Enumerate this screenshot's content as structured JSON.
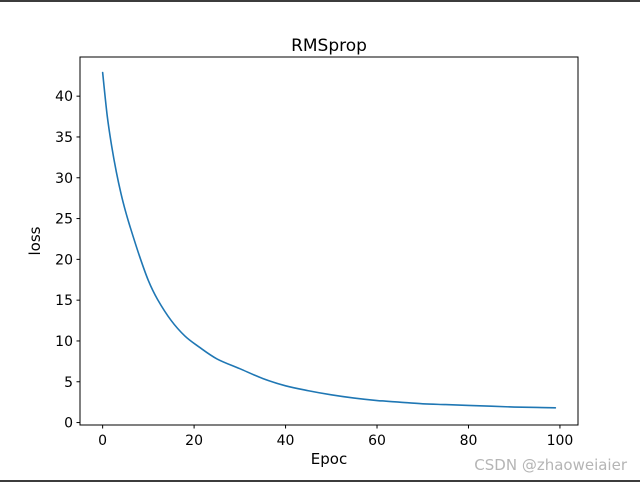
{
  "page": {
    "background": "#ffffff",
    "border_color": "#3c3c3c"
  },
  "watermark": {
    "text": "CSDN @zhaoweiaier",
    "color": "#b5b5b5"
  },
  "chart_data": {
    "type": "line",
    "title": "RMSprop",
    "xlabel": "Epoc",
    "ylabel": "loss",
    "grid": false,
    "legend": null,
    "xlim": [
      -4.95,
      103.95
    ],
    "ylim": [
      -0.3,
      44.8
    ],
    "xticks": [
      0,
      20,
      40,
      60,
      80,
      100
    ],
    "yticks": [
      0,
      5,
      10,
      15,
      20,
      25,
      30,
      35,
      40
    ],
    "series": [
      {
        "name": "loss",
        "color": "#1f77b4",
        "line_width": 1.6,
        "x": [
          0,
          1,
          2,
          3,
          4,
          5,
          6,
          8,
          10,
          12,
          15,
          18,
          21,
          25,
          30,
          35,
          40,
          45,
          50,
          55,
          60,
          65,
          70,
          75,
          80,
          85,
          90,
          95,
          99
        ],
        "y": [
          42.9,
          37.6,
          33.8,
          30.7,
          28.1,
          25.9,
          24.0,
          20.5,
          17.4,
          15.1,
          12.5,
          10.6,
          9.3,
          7.8,
          6.6,
          5.4,
          4.5,
          3.9,
          3.4,
          3.0,
          2.7,
          2.5,
          2.3,
          2.2,
          2.1,
          2.0,
          1.9,
          1.85,
          1.8
        ]
      }
    ]
  }
}
